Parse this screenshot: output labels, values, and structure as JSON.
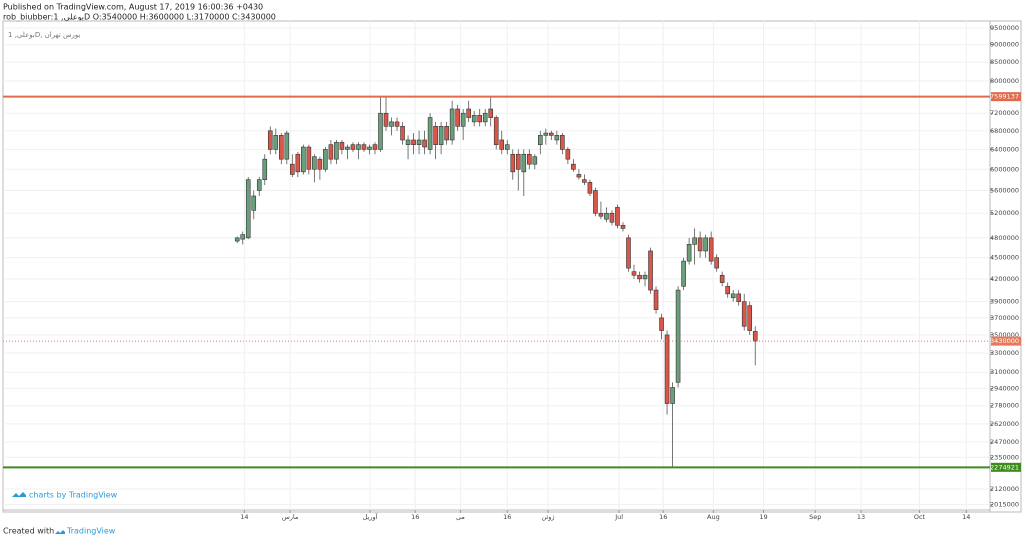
{
  "header": {
    "published": "Published on TradingView.com, August 17, 2019 16:00:36 +0430",
    "legend": "rob_biubber:بوعلی, 1D O:3540000 H:3600000 L:3170000 C:3430000"
  },
  "branding": "charts by TradingView",
  "footer": {
    "created": "Created with",
    "brand": "TradingView"
  },
  "chart_data": {
    "type": "candlestick",
    "title": "بوعلی, 1D, بورس تهران",
    "log_scale": true,
    "grid": true,
    "up_color": "#6a9f7b",
    "down_color": "#d9574a",
    "xlim": [
      -42.5,
      136.6
    ],
    "ylim": [
      1980000,
      9720000
    ],
    "xticks": [
      {
        "value": 1.3,
        "label": "14"
      },
      {
        "value": 9.6,
        "label": "مارس"
      },
      {
        "value": 24.1,
        "label": "آوریل"
      },
      {
        "value": 32.3,
        "label": "16"
      },
      {
        "value": 40.5,
        "label": "می"
      },
      {
        "value": 49,
        "label": "16"
      },
      {
        "value": 56.4,
        "label": "ژوئن"
      },
      {
        "value": 69.3,
        "label": "Jul"
      },
      {
        "value": 77.3,
        "label": "16"
      },
      {
        "value": 86.4,
        "label": "Aug"
      },
      {
        "value": 95.5,
        "label": "19"
      },
      {
        "value": 104.9,
        "label": "Sep"
      },
      {
        "value": 113.2,
        "label": "13"
      },
      {
        "value": 123.8,
        "label": "Oct"
      },
      {
        "value": 132.3,
        "label": "14"
      }
    ],
    "yticks": [
      9500000,
      9000000,
      8500000,
      8000000,
      7200000,
      6800000,
      6400000,
      6000000,
      5600000,
      5200000,
      4800000,
      4500000,
      4200000,
      3900000,
      3700000,
      3500000,
      3300000,
      3100000,
      2940000,
      2780000,
      2620000,
      2470000,
      2350000,
      2120000,
      2015000
    ],
    "price_lines": [
      {
        "value": 7599137,
        "color": "#e06a4c",
        "style": "solid"
      },
      {
        "value": 3430000,
        "color": "#e8795a",
        "style": "dotted"
      },
      {
        "value": 2274921,
        "color": "#3d8b1f",
        "style": "solid"
      }
    ],
    "x": [
      0,
      1,
      2,
      3,
      4,
      5,
      6,
      7,
      8,
      9,
      10,
      11,
      12,
      13,
      14,
      15,
      16,
      17,
      18,
      19,
      20,
      21,
      22,
      23,
      24,
      25,
      26,
      27,
      28,
      29,
      30,
      31,
      32,
      33,
      34,
      35,
      36,
      37,
      38,
      39,
      40,
      41,
      42,
      43,
      44,
      45,
      46,
      47,
      48,
      49,
      50,
      51,
      52,
      53,
      54,
      55,
      56,
      57,
      58,
      59,
      60,
      61,
      62,
      63,
      64,
      65,
      66,
      67,
      68,
      69,
      70,
      71,
      72,
      73,
      74,
      75,
      76,
      77,
      78,
      79,
      80,
      81,
      82,
      83,
      84,
      85,
      86,
      87,
      88,
      89,
      90,
      91,
      92,
      93,
      94
    ],
    "open": [
      4750000,
      4780000,
      4800000,
      5250000,
      5600000,
      5800000,
      6800000,
      6400000,
      6700000,
      6200000,
      6100000,
      6300000,
      5950000,
      6450000,
      6000000,
      6200000,
      6000000,
      6500000,
      6200000,
      6550000,
      6400000,
      6500000,
      6400000,
      6500000,
      6400000,
      6500000,
      6400000,
      7200000,
      6900000,
      7000000,
      6900000,
      6500000,
      6600000,
      6500000,
      6600000,
      6400000,
      6900000,
      6500000,
      6900000,
      6600000,
      7300000,
      6900000,
      7300000,
      7000000,
      7150000,
      7000000,
      7300000,
      7100000,
      6600000,
      6400000,
      6300000,
      6300000,
      5950000,
      6300000,
      6100000,
      6500000,
      6700000,
      6750000,
      6600000,
      6700000,
      6400000,
      6100000,
      5900000,
      5800000,
      5750000,
      5600000,
      5200000,
      5100000,
      5200000,
      5300000,
      5000000,
      4800000,
      4300000,
      4250000,
      4200000,
      4600000,
      4050000,
      3700000,
      3500000,
      2800000,
      3000000,
      4100000,
      4450000,
      4700000,
      4800000,
      4600000,
      4800000,
      4500000,
      4250000,
      4100000,
      3950000,
      4000000,
      3900000,
      3850000,
      3540000
    ],
    "high": [
      4820000,
      4900000,
      5850000,
      5600000,
      5850000,
      6300000,
      6900000,
      6850000,
      6750000,
      6800000,
      6300000,
      6350000,
      6500000,
      6500000,
      6300000,
      6250000,
      6450000,
      6600000,
      6600000,
      6600000,
      6500000,
      6550000,
      6550000,
      6550000,
      6500000,
      6550000,
      7600000,
      7600000,
      7100000,
      7100000,
      7000000,
      6700000,
      6750000,
      6800000,
      6800000,
      7200000,
      7000000,
      7000000,
      7000000,
      7500000,
      7400000,
      7300000,
      7500000,
      7250000,
      7300000,
      7300000,
      7600000,
      7150000,
      6800000,
      6600000,
      6400000,
      6400000,
      6400000,
      6400000,
      6300000,
      6800000,
      6850000,
      6800000,
      6800000,
      6750000,
      6450000,
      6200000,
      6000000,
      5900000,
      5800000,
      5650000,
      5400000,
      5300000,
      5250000,
      5350000,
      5050000,
      4850000,
      4400000,
      4300000,
      4300000,
      4650000,
      4100000,
      3750000,
      3550000,
      3000000,
      4100000,
      4500000,
      4800000,
      4950000,
      4900000,
      4850000,
      4900000,
      4550000,
      4300000,
      4150000,
      4050000,
      4050000,
      4000000,
      3900000,
      3600000
    ],
    "low": [
      4720000,
      4700000,
      4780000,
      5100000,
      5500000,
      5700000,
      6300000,
      6300000,
      6100000,
      6100000,
      5850000,
      5850000,
      5900000,
      5900000,
      5750000,
      5800000,
      5950000,
      6100000,
      6100000,
      6300000,
      6200000,
      6350000,
      6200000,
      6350000,
      6300000,
      6300000,
      6350000,
      6800000,
      6700000,
      6800000,
      6500000,
      6200000,
      6300000,
      6300000,
      6300000,
      6300000,
      6200000,
      6300000,
      6500000,
      6500000,
      6800000,
      6600000,
      7000000,
      6900000,
      6900000,
      6900000,
      6900000,
      6400000,
      6300000,
      6300000,
      5800000,
      5600000,
      5500000,
      6000000,
      6000000,
      6300000,
      6500000,
      6600000,
      6500000,
      6300000,
      6100000,
      5950000,
      5800000,
      5700000,
      5500000,
      5150000,
      5100000,
      5050000,
      5000000,
      4950000,
      4900000,
      4300000,
      4200000,
      4150000,
      4100000,
      4000000,
      3750000,
      3450000,
      2700000,
      2274921,
      2950000,
      4050000,
      4400000,
      4400000,
      4500000,
      4500000,
      4400000,
      4300000,
      4100000,
      3950000,
      3900000,
      3850000,
      3550000,
      3500000,
      3170000
    ],
    "close": [
      4800000,
      4850000,
      5800000,
      5500000,
      5800000,
      6200000,
      6400000,
      6700000,
      6200000,
      6750000,
      5900000,
      5950000,
      6450000,
      6000000,
      6250000,
      6000000,
      6400000,
      6200000,
      6550000,
      6400000,
      6450000,
      6400000,
      6500000,
      6400000,
      6450000,
      6400000,
      7200000,
      6900000,
      7000000,
      6900000,
      6600000,
      6600000,
      6500000,
      6600000,
      6450000,
      7100000,
      6500000,
      6900000,
      6600000,
      7300000,
      6900000,
      7200000,
      7100000,
      7150000,
      7000000,
      7200000,
      7100000,
      6500000,
      6400000,
      6500000,
      5950000,
      6000000,
      6300000,
      6100000,
      6250000,
      6700000,
      6750000,
      6700000,
      6700000,
      6400000,
      6200000,
      6000000,
      5850000,
      5750000,
      5550000,
      5200000,
      5150000,
      5200000,
      5050000,
      5000000,
      4950000,
      4350000,
      4250000,
      4200000,
      4250000,
      4050000,
      3800000,
      3550000,
      2800000,
      2950000,
      4050000,
      4450000,
      4700000,
      4800000,
      4600000,
      4800000,
      4450000,
      4350000,
      4150000,
      4000000,
      4000000,
      3900000,
      3600000,
      3550000,
      3430000
    ]
  }
}
